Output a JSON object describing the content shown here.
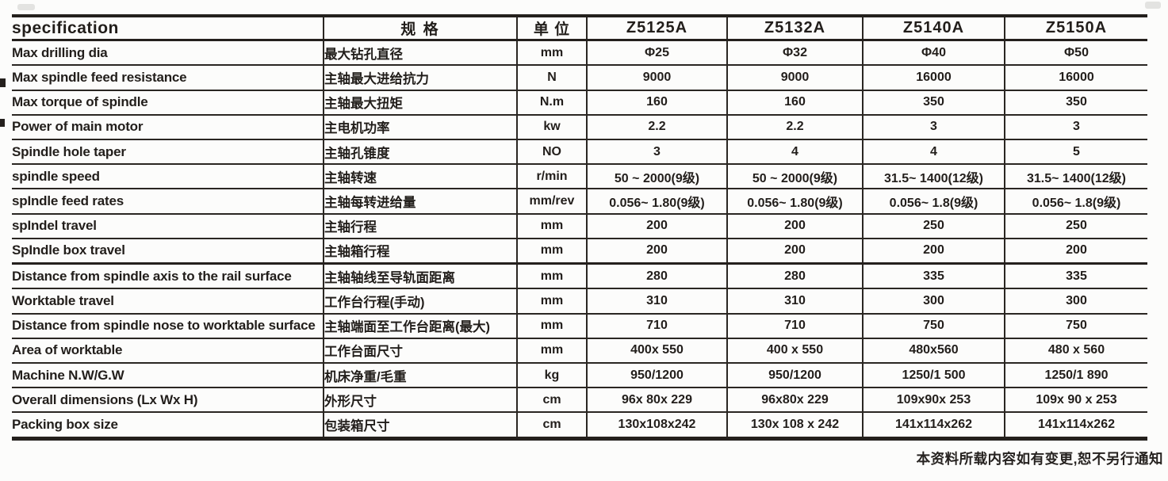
{
  "footer": {
    "note": "本资料所载内容如有变更,恕不另行通知"
  },
  "table": {
    "columns": [
      "specification",
      "规 格",
      "单 位",
      "Z5125A",
      "Z5132A",
      "Z5140A",
      "Z5150A"
    ],
    "rows": [
      {
        "en": "Max drilling dia",
        "zh": "最大钻孔直径",
        "unit": "mm",
        "values": [
          "Φ25",
          "Φ32",
          "Φ40",
          "Φ50"
        ]
      },
      {
        "en": "Max spindle feed resistance",
        "zh": "主轴最大进给抗力",
        "unit": "N",
        "values": [
          "9000",
          "9000",
          "16000",
          "16000"
        ]
      },
      {
        "en": "Max torque of spindle",
        "zh": "主轴最大扭矩",
        "unit": "N.m",
        "values": [
          "160",
          "160",
          "350",
          "350"
        ]
      },
      {
        "en": "Power of main motor",
        "zh": "主电机功率",
        "unit": "kw",
        "values": [
          "2.2",
          "2.2",
          "3",
          "3"
        ]
      },
      {
        "en": "Spindle hole taper",
        "zh": "主轴孔锥度",
        "unit": "NO",
        "values": [
          "3",
          "4",
          "4",
          "5"
        ]
      },
      {
        "en": "spindle speed",
        "zh": "主轴转速",
        "unit": "r/min",
        "values": [
          "50 ~ 2000(9级)",
          "50 ~ 2000(9级)",
          "31.5~ 1400(12级)",
          "31.5~ 1400(12级)"
        ]
      },
      {
        "en": "spIndle feed rates",
        "zh": "主轴每转进给量",
        "unit": "mm/rev",
        "values": [
          "0.056~ 1.80(9级)",
          "0.056~ 1.80(9级)",
          "0.056~ 1.8(9级)",
          "0.056~ 1.8(9级)"
        ]
      },
      {
        "en": "spIndel travel",
        "zh": "主轴行程",
        "unit": "mm",
        "values": [
          "200",
          "200",
          "250",
          "250"
        ]
      },
      {
        "en": "SpIndle box travel",
        "zh": "主轴箱行程",
        "unit": "mm",
        "values": [
          "200",
          "200",
          "200",
          "200"
        ]
      },
      {
        "en": "Distance from spindle axis to the rail surface",
        "zh": "主轴轴线至导轨面距离",
        "unit": "mm",
        "values": [
          "280",
          "280",
          "335",
          "335"
        ]
      },
      {
        "en": "Worktable travel",
        "zh": "工作台行程(手动)",
        "unit": "mm",
        "values": [
          "310",
          "310",
          "300",
          "300"
        ]
      },
      {
        "en": "Distance from spindle nose to worktable surface",
        "zh": "主轴端面至工作台距离(最大)",
        "unit": "mm",
        "values": [
          "710",
          "710",
          "750",
          "750"
        ]
      },
      {
        "en": "Area of worktable",
        "zh": "工作台面尺寸",
        "unit": "mm",
        "values": [
          "400x 550",
          "400 x 550",
          "480x560",
          "480 x 560"
        ]
      },
      {
        "en": "Machine N.W/G.W",
        "zh": "机床净重/毛重",
        "unit": "kg",
        "values": [
          "950/1200",
          "950/1200",
          "1250/1 500",
          "1250/1 890"
        ]
      },
      {
        "en": "Overall dimensions (Lx Wx H)",
        "zh": "外形尺寸",
        "unit": "cm",
        "values": [
          "96x 80x 229",
          "96x80x 229",
          "109x90x 253",
          "109x 90 x 253"
        ]
      },
      {
        "en": "Packing box size",
        "zh": "包装箱尺寸",
        "unit": "cm",
        "values": [
          "130x108x242",
          "130x 108 x 242",
          "141x114x262",
          "141x114x262"
        ]
      }
    ]
  }
}
